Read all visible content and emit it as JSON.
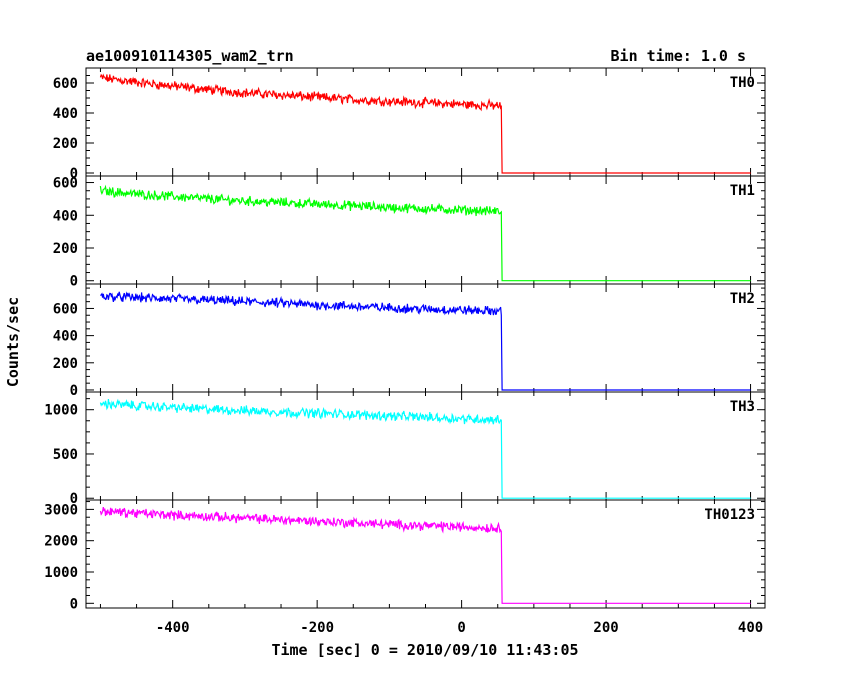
{
  "header": {
    "left_title": "ae100910114305_wam2_trn",
    "right_title": "Bin time: 1.0 s"
  },
  "chart_data": [
    {
      "type": "line",
      "label": "TH0",
      "color": "#ff0000",
      "xlim": [
        -520,
        420
      ],
      "ylim": [
        -20,
        700
      ],
      "yticks": [
        0,
        200,
        400,
        600
      ],
      "series": [
        {
          "x": [
            -500,
            -450,
            -400,
            -350,
            -300,
            -250,
            -200,
            -150,
            -100,
            -50,
            0,
            50,
            55,
            56,
            100,
            200,
            300,
            400
          ],
          "y": [
            635,
            605,
            580,
            555,
            535,
            520,
            505,
            490,
            478,
            468,
            458,
            448,
            445,
            0,
            0,
            0,
            0,
            0
          ]
        }
      ]
    },
    {
      "type": "line",
      "label": "TH1",
      "color": "#00ff00",
      "xlim": [
        -520,
        420
      ],
      "ylim": [
        -20,
        640
      ],
      "yticks": [
        0,
        200,
        400,
        600
      ],
      "series": [
        {
          "x": [
            -500,
            -450,
            -400,
            -350,
            -300,
            -250,
            -200,
            -150,
            -100,
            -50,
            0,
            50,
            55,
            56,
            100,
            200,
            300,
            400
          ],
          "y": [
            550,
            530,
            515,
            500,
            488,
            478,
            468,
            458,
            448,
            440,
            432,
            424,
            420,
            0,
            0,
            0,
            0,
            0
          ]
        }
      ]
    },
    {
      "type": "line",
      "label": "TH2",
      "color": "#0000ff",
      "xlim": [
        -520,
        420
      ],
      "ylim": [
        -15,
        780
      ],
      "yticks": [
        0,
        200,
        400,
        600
      ],
      "series": [
        {
          "x": [
            -500,
            -450,
            -400,
            -350,
            -300,
            -250,
            -200,
            -150,
            -100,
            -50,
            0,
            50,
            55,
            56,
            100,
            200,
            300,
            400
          ],
          "y": [
            690,
            680,
            670,
            660,
            650,
            638,
            625,
            615,
            605,
            595,
            588,
            580,
            575,
            0,
            0,
            0,
            0,
            0
          ]
        }
      ]
    },
    {
      "type": "line",
      "label": "TH3",
      "color": "#00ffff",
      "xlim": [
        -520,
        420
      ],
      "ylim": [
        -20,
        1200
      ],
      "yticks": [
        0,
        500,
        1000
      ],
      "series": [
        {
          "x": [
            -500,
            -450,
            -400,
            -350,
            -300,
            -250,
            -200,
            -150,
            -100,
            -50,
            0,
            50,
            55,
            56,
            100,
            200,
            300,
            400
          ],
          "y": [
            1070,
            1045,
            1025,
            1005,
            990,
            975,
            960,
            945,
            930,
            915,
            900,
            885,
            880,
            0,
            0,
            0,
            0,
            0
          ]
        }
      ]
    },
    {
      "type": "line",
      "label": "TH0123",
      "color": "#ff00ff",
      "xlim": [
        -520,
        420
      ],
      "ylim": [
        -150,
        3300
      ],
      "yticks": [
        0,
        1000,
        2000,
        3000
      ],
      "series": [
        {
          "x": [
            -500,
            -450,
            -400,
            -350,
            -300,
            -250,
            -200,
            -150,
            -100,
            -50,
            0,
            50,
            55,
            56,
            100,
            200,
            300,
            400
          ],
          "y": [
            2950,
            2880,
            2820,
            2770,
            2720,
            2670,
            2620,
            2570,
            2520,
            2480,
            2440,
            2400,
            2380,
            0,
            0,
            0,
            0,
            0
          ]
        }
      ]
    }
  ],
  "x_axis": {
    "title": "Time [sec] 0 = 2010/09/10 11:43:05",
    "ticks": [
      -400,
      -200,
      0,
      200,
      400
    ]
  },
  "y_axis": {
    "title": "Counts/sec"
  }
}
